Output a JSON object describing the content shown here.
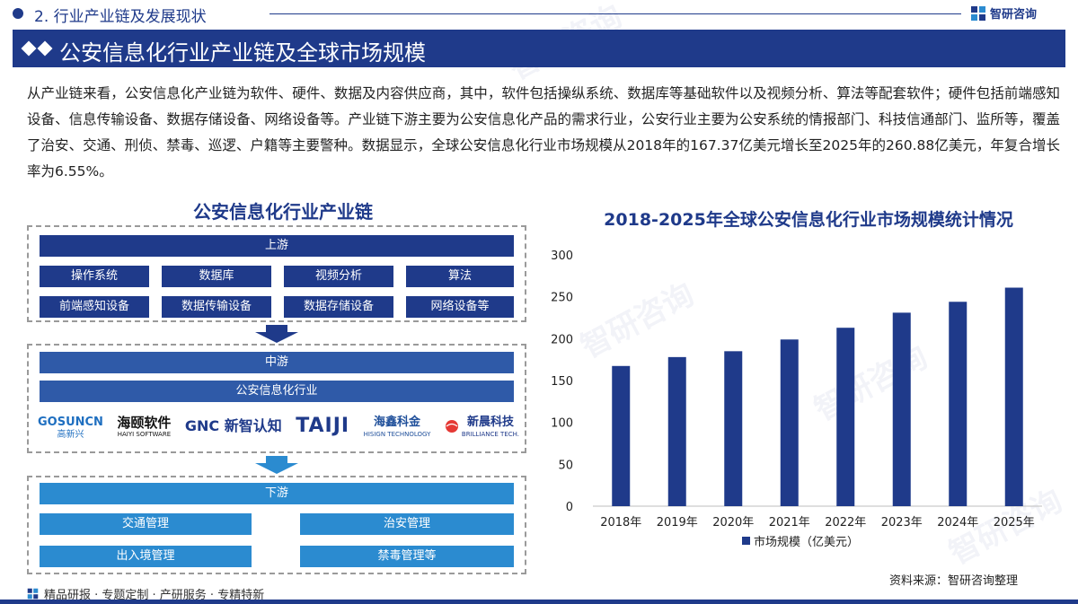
{
  "header": {
    "section_title": "2. 行业产业链及发展现状",
    "brand_name": "智研咨询"
  },
  "banner": {
    "title": "公安信息化行业产业链及全球市场规模"
  },
  "intro": "从产业链来看，公安信息化产业链为软件、硬件、数据及内容供应商，其中，软件包括操纵系统、数据库等基础软件以及视频分析、算法等配套软件；硬件包括前端感知设备、信息传输设备、数据存储设备、网络设备等。产业链下游主要为公安信息化产品的需求行业，公安行业主要为公安系统的情报部门、科技信通部门、监所等，覆盖了治安、交通、刑侦、禁毒、巡逻、户籍等主要警种。数据显示，全球公安信息化行业市场规模从2018年的167.37亿美元增长至2025年的260.88亿美元，年复合增长率为6.55%。",
  "chain": {
    "title": "公安信息化行业产业链",
    "upstream": {
      "label": "上游",
      "row1": [
        "操作系统",
        "数据库",
        "视频分析",
        "算法"
      ],
      "row2": [
        "前端感知设备",
        "数据传输设备",
        "数据存储设备",
        "网络设备等"
      ]
    },
    "midstream": {
      "label": "中游",
      "industry": "公安信息化行业",
      "logos": [
        {
          "main": "GOSUNCN",
          "sub": "高新兴",
          "color": "#1f6fc0"
        },
        {
          "main": "海颐软件",
          "sub": "HAIYI SOFTWARE",
          "color": "#111111"
        },
        {
          "main": "GNC 新智认知",
          "sub": "",
          "color": "#1f3a8a"
        },
        {
          "main": "TAIJI",
          "sub": "",
          "color": "#1f3a8a"
        },
        {
          "main": "海鑫科金",
          "sub": "HISIGN TECHNOLOGY",
          "color": "#1f4f9a"
        },
        {
          "main": "新晨科技",
          "sub": "BRILLIANCE TECH.",
          "color": "#1f3a8a"
        }
      ]
    },
    "downstream": {
      "label": "下游",
      "items": [
        "交通管理",
        "治安管理",
        "出入境管理",
        "禁毒管理等"
      ]
    }
  },
  "chart_data": {
    "type": "bar",
    "title": "2018-2025年全球公安信息化行业市场规模统计情况",
    "categories": [
      "2018年",
      "2019年",
      "2020年",
      "2021年",
      "2022年",
      "2023年",
      "2024年",
      "2025年"
    ],
    "series": [
      {
        "name": "市场规模（亿美元）",
        "values": [
          167.37,
          178,
          185,
          199,
          213,
          231,
          244,
          260.88
        ],
        "color": "#1f3a8a"
      }
    ],
    "ylim": [
      0,
      300
    ],
    "yticks": [
      "0",
      "50",
      "100",
      "150",
      "200",
      "250",
      "300"
    ],
    "xlabel": "",
    "ylabel": "",
    "grid": false,
    "legend_position": "bottom"
  },
  "source": "资料来源：智研咨询整理",
  "footer": {
    "text": "精品研报 · 专题定制 · 产研服务 · 专精特新"
  },
  "colors": {
    "navy": "#1f3a8a",
    "mid_blue": "#2f5aa8",
    "light_blue": "#2b8bd0"
  }
}
